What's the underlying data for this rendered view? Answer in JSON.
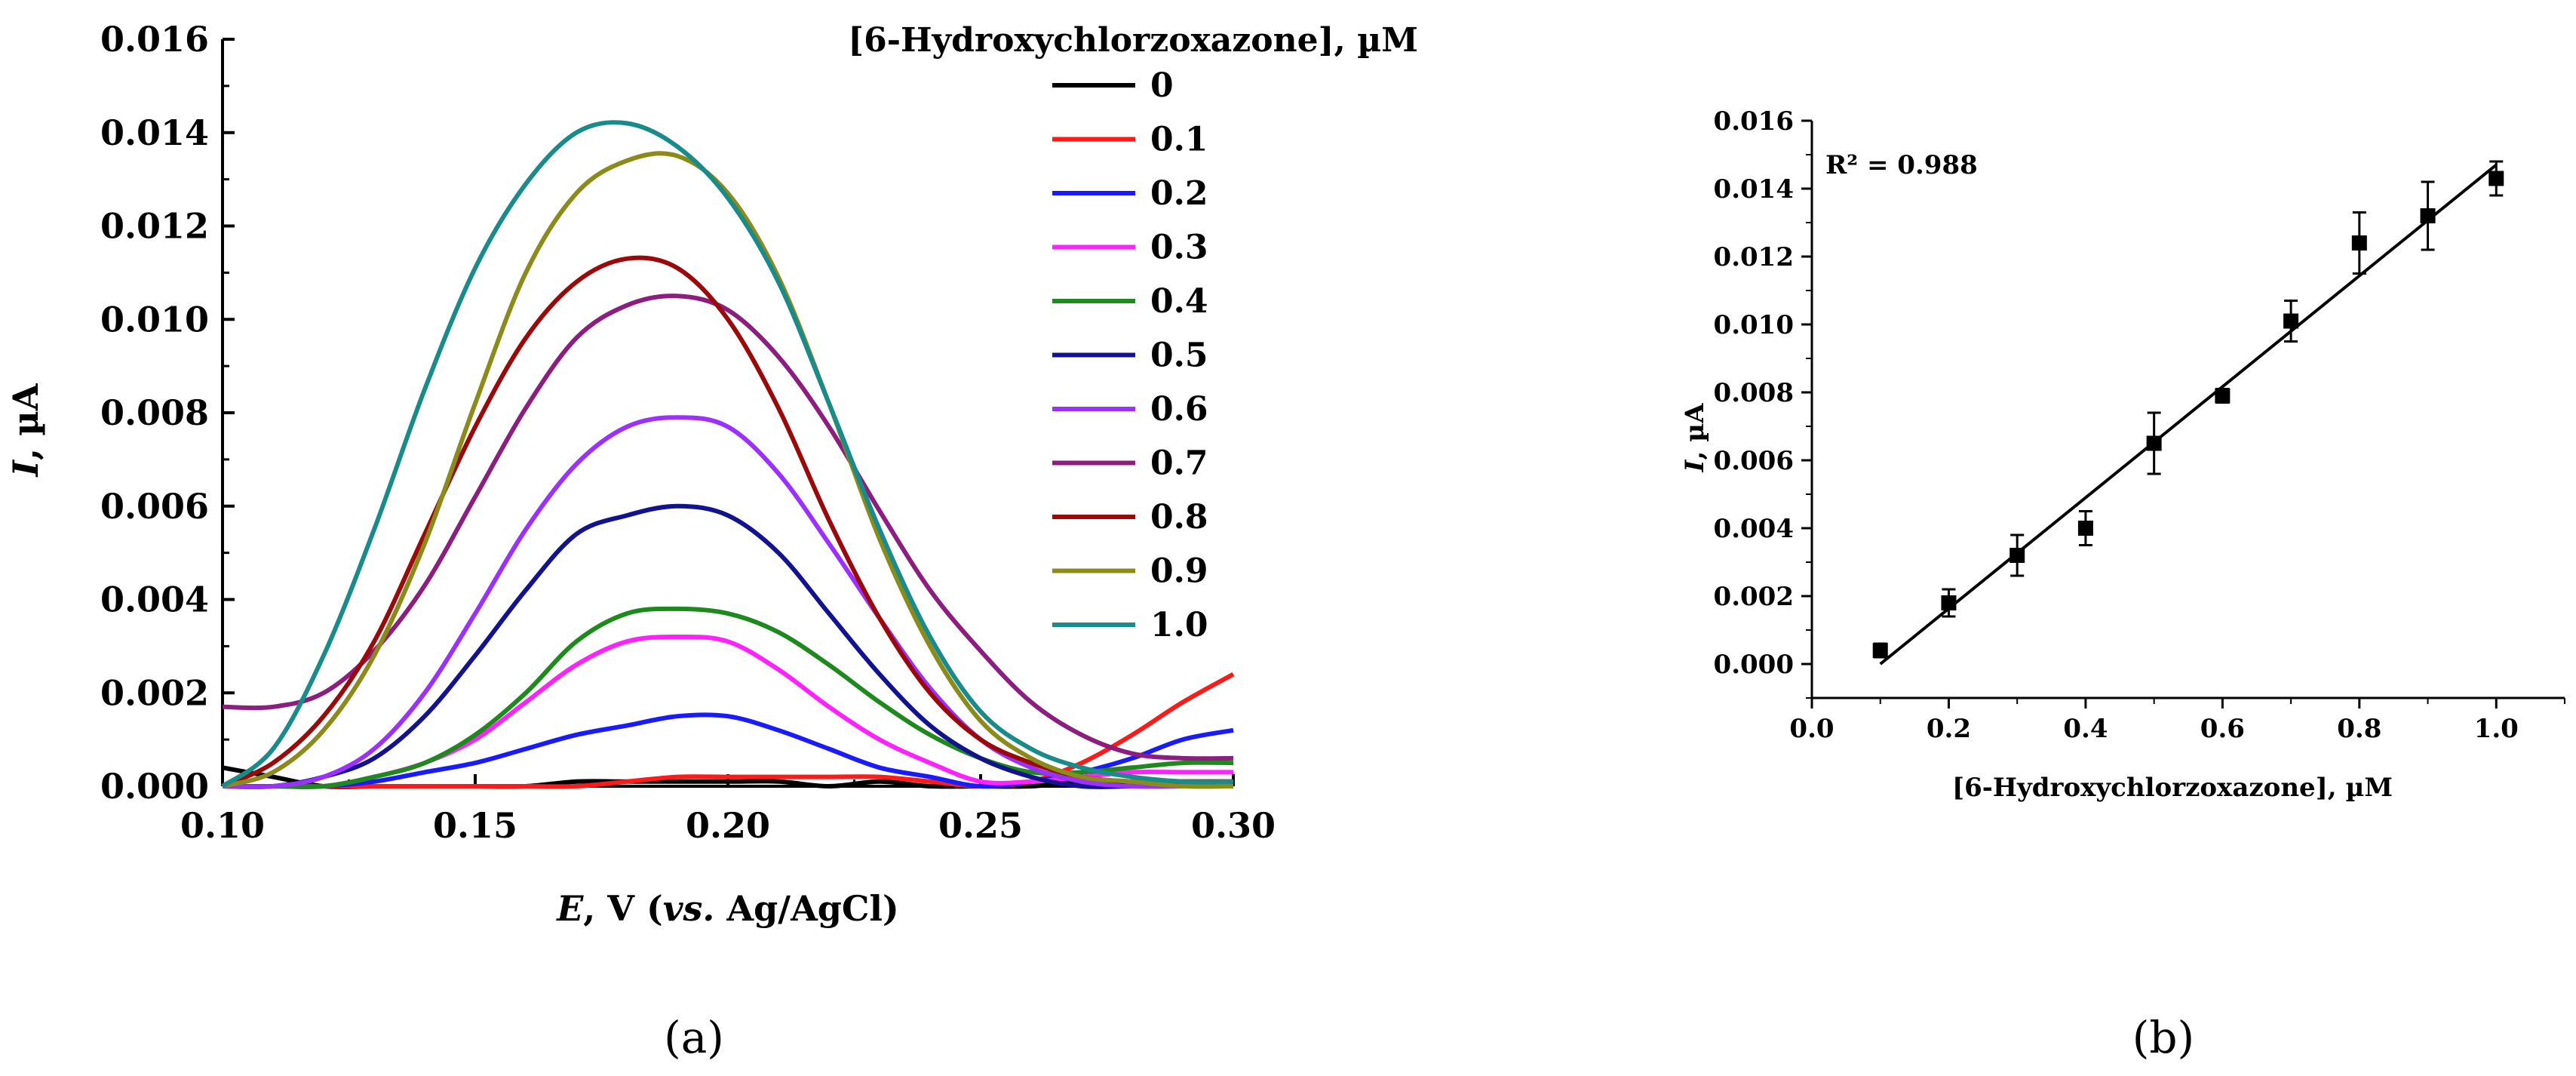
{
  "chart_data": [
    {
      "type": "line",
      "panel": "(a)",
      "xlabel_italic": "E",
      "xlabel_rest": ", V (",
      "xlabel_italic2": "vs.",
      "xlabel_rest2": " Ag/AgCl)",
      "ylabel_italic": "I",
      "ylabel_rest": ", µA",
      "xlim": [
        0.1,
        0.3
      ],
      "ylim": [
        0.0,
        0.016
      ],
      "xticks": [
        "0.10",
        "0.15",
        "0.20",
        "0.25",
        "0.30"
      ],
      "yticks": [
        "0.000",
        "0.002",
        "0.004",
        "0.006",
        "0.008",
        "0.010",
        "0.012",
        "0.014",
        "0.016"
      ],
      "legend_title": "[6-Hydroxychlorzoxazone], µM",
      "legend_position": "top-right",
      "x": [
        0.1,
        0.11,
        0.12,
        0.13,
        0.14,
        0.15,
        0.16,
        0.17,
        0.18,
        0.19,
        0.2,
        0.21,
        0.22,
        0.23,
        0.24,
        0.25,
        0.26,
        0.27,
        0.28,
        0.29,
        0.3
      ],
      "series": [
        {
          "name": "0",
          "color": "#000000",
          "values": [
            0.0004,
            0.0002,
            0.0,
            0.0,
            0.0,
            0.0,
            0.0,
            0.0001,
            0.0001,
            0.0001,
            0.0001,
            0.0001,
            0.0,
            0.0001,
            0.0,
            0.0,
            0.0,
            0.0001,
            0.0001,
            0.0001,
            0.0001
          ]
        },
        {
          "name": "0.1",
          "color": "#ff1a1a",
          "values": [
            0.0,
            0.0,
            0.0,
            0.0,
            0.0,
            0.0,
            0.0,
            0.0,
            0.0001,
            0.0002,
            0.0002,
            0.0002,
            0.0002,
            0.0002,
            0.0001,
            0.0,
            0.0001,
            0.0005,
            0.0011,
            0.0018,
            0.0024
          ]
        },
        {
          "name": "0.2",
          "color": "#1a1aff",
          "values": [
            0.0,
            0.0,
            0.0,
            0.0001,
            0.0003,
            0.0005,
            0.0008,
            0.0011,
            0.0013,
            0.0015,
            0.0015,
            0.0012,
            0.0008,
            0.0004,
            0.0002,
            0.0,
            0.0001,
            0.0003,
            0.0006,
            0.001,
            0.0012
          ]
        },
        {
          "name": "0.3",
          "color": "#ff22ff",
          "values": [
            0.0,
            0.0,
            0.0,
            0.0002,
            0.0005,
            0.001,
            0.0018,
            0.0026,
            0.0031,
            0.0032,
            0.0031,
            0.0025,
            0.0017,
            0.001,
            0.0005,
            0.0001,
            0.0001,
            0.0002,
            0.0003,
            0.0003,
            0.0003
          ]
        },
        {
          "name": "0.4",
          "color": "#1e8a1e",
          "values": [
            0.0,
            0.0,
            0.0,
            0.0002,
            0.0005,
            0.0011,
            0.002,
            0.0031,
            0.0037,
            0.0038,
            0.0037,
            0.0033,
            0.0026,
            0.0018,
            0.0011,
            0.0006,
            0.0003,
            0.0003,
            0.0004,
            0.0005,
            0.0005
          ]
        },
        {
          "name": "0.5",
          "color": "#13138f",
          "values": [
            0.0,
            0.0,
            0.0002,
            0.0006,
            0.0015,
            0.0028,
            0.0042,
            0.0054,
            0.0058,
            0.006,
            0.0058,
            0.005,
            0.0037,
            0.0024,
            0.0013,
            0.0006,
            0.0002,
            0.0,
            0.0,
            0.0,
            0.0
          ]
        },
        {
          "name": "0.6",
          "color": "#9b30ff",
          "values": [
            0.0,
            0.0,
            0.0002,
            0.0008,
            0.002,
            0.0037,
            0.0055,
            0.0069,
            0.0077,
            0.0079,
            0.0077,
            0.0067,
            0.0052,
            0.0036,
            0.0021,
            0.001,
            0.0004,
            0.0001,
            0.0,
            0.0,
            0.0
          ]
        },
        {
          "name": "0.7",
          "color": "#8b1e7e",
          "values": [
            0.0017,
            0.0017,
            0.002,
            0.0029,
            0.0043,
            0.0062,
            0.0081,
            0.0096,
            0.0103,
            0.0105,
            0.0102,
            0.0092,
            0.0077,
            0.0059,
            0.0042,
            0.0029,
            0.0018,
            0.0011,
            0.0007,
            0.0006,
            0.0006
          ]
        },
        {
          "name": "0.8",
          "color": "#9b0a0a",
          "values": [
            0.0,
            0.0005,
            0.0015,
            0.0031,
            0.0054,
            0.0077,
            0.0096,
            0.0108,
            0.0113,
            0.0111,
            0.01,
            0.0081,
            0.0057,
            0.0036,
            0.002,
            0.001,
            0.0005,
            0.0002,
            0.0001,
            0.0001,
            0.0001
          ]
        },
        {
          "name": "0.9",
          "color": "#8b8b1a",
          "values": [
            0.0,
            0.0003,
            0.0012,
            0.0028,
            0.0052,
            0.0082,
            0.011,
            0.0127,
            0.0134,
            0.0135,
            0.0127,
            0.0109,
            0.0082,
            0.0053,
            0.003,
            0.0014,
            0.0006,
            0.0002,
            0.0001,
            0.0,
            0.0
          ]
        },
        {
          "name": "1.0",
          "color": "#1a8b8b",
          "values": [
            0.0,
            0.0008,
            0.0028,
            0.0055,
            0.0085,
            0.0111,
            0.0129,
            0.014,
            0.0142,
            0.0137,
            0.0126,
            0.0108,
            0.0082,
            0.0055,
            0.0032,
            0.0016,
            0.0008,
            0.0004,
            0.0002,
            0.0001,
            0.0001
          ]
        }
      ]
    },
    {
      "type": "scatter",
      "panel": "(b)",
      "xlabel": "[6-Hydroxychlorzoxazone], µM",
      "ylabel_italic": "I",
      "ylabel_rest": ", µA",
      "xlim": [
        0.0,
        1.1
      ],
      "ylim": [
        -0.001,
        0.016
      ],
      "xticks": [
        "0.0",
        "0.2",
        "0.4",
        "0.6",
        "0.8",
        "1.0"
      ],
      "yticks": [
        "0.000",
        "0.002",
        "0.004",
        "0.006",
        "0.008",
        "0.010",
        "0.012",
        "0.014",
        "0.016"
      ],
      "annotation_r2": "R² = 0.988",
      "x": [
        0.1,
        0.2,
        0.3,
        0.4,
        0.5,
        0.6,
        0.7,
        0.8,
        0.9,
        1.0
      ],
      "y": [
        0.0004,
        0.0018,
        0.0032,
        0.004,
        0.0065,
        0.0079,
        0.0101,
        0.0124,
        0.0132,
        0.0143
      ],
      "error": [
        0.0002,
        0.0004,
        0.0006,
        0.0005,
        0.0009,
        0.0002,
        0.0006,
        0.0009,
        0.001,
        0.0005
      ],
      "fit_line": {
        "x": [
          0.1,
          1.0
        ],
        "y": [
          0.0,
          0.0147
        ]
      }
    }
  ]
}
